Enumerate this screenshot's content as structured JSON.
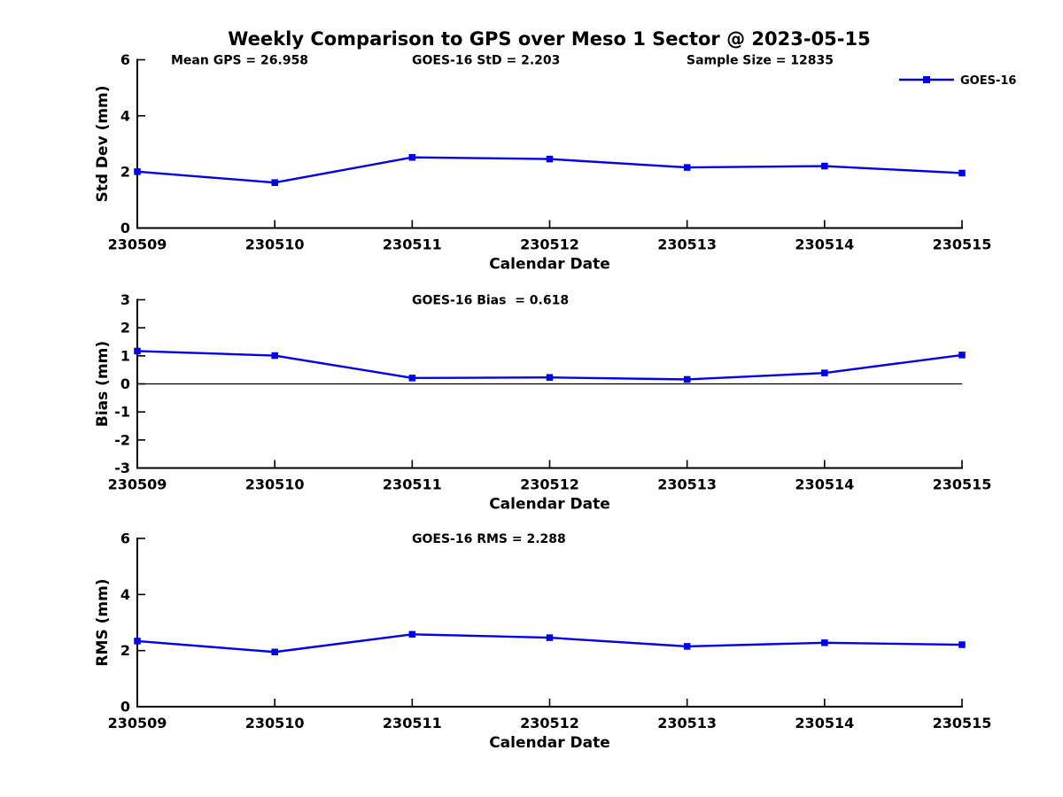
{
  "figure": {
    "title": "Weekly Comparison to GPS over Meso 1 Sector @ 2023-05-15",
    "background": "#ffffff",
    "text_color": "#000000"
  },
  "legend": {
    "label": "GOES-16",
    "color": "#0000ee",
    "marker": "filled-square",
    "position": "top-right",
    "frame": false
  },
  "chart_data": [
    {
      "type": "line",
      "name": "std-dev",
      "categories": [
        "230509",
        "230510",
        "230511",
        "230512",
        "230513",
        "230514",
        "230515"
      ],
      "series": [
        {
          "name": "GOES-16",
          "color": "#0000ee",
          "marker": "square",
          "values": [
            2.01,
            1.62,
            2.52,
            2.46,
            2.16,
            2.21,
            1.96
          ]
        }
      ],
      "xlabel": "Calendar Date",
      "ylabel": "Std Dev (mm)",
      "ylim": [
        0,
        6
      ],
      "yticks": [
        0,
        2,
        4,
        6
      ],
      "grid": false,
      "zero_line": false,
      "annotations": [
        "Mean GPS = 26.958",
        "GOES-16 StD = 2.203",
        "Sample Size = 12835"
      ]
    },
    {
      "type": "line",
      "name": "bias",
      "categories": [
        "230509",
        "230510",
        "230511",
        "230512",
        "230513",
        "230514",
        "230515"
      ],
      "series": [
        {
          "name": "GOES-16",
          "color": "#0000ee",
          "marker": "square",
          "values": [
            1.17,
            1.01,
            0.21,
            0.23,
            0.16,
            0.39,
            1.03
          ]
        }
      ],
      "xlabel": "Calendar Date",
      "ylabel": "Bias (mm)",
      "ylim": [
        -3,
        3
      ],
      "yticks": [
        -3,
        -2,
        -1,
        0,
        1,
        2,
        3
      ],
      "grid": false,
      "zero_line": true,
      "annotations": [
        "GOES-16 Bias  = 0.618"
      ]
    },
    {
      "type": "line",
      "name": "rms",
      "categories": [
        "230509",
        "230510",
        "230511",
        "230512",
        "230513",
        "230514",
        "230515"
      ],
      "series": [
        {
          "name": "GOES-16",
          "color": "#0000ee",
          "marker": "square",
          "values": [
            2.34,
            1.95,
            2.58,
            2.46,
            2.15,
            2.28,
            2.21
          ]
        }
      ],
      "xlabel": "Calendar Date",
      "ylabel": "RMS (mm)",
      "ylim": [
        0,
        6
      ],
      "yticks": [
        0,
        2,
        4,
        6
      ],
      "grid": false,
      "zero_line": false,
      "annotations": [
        "GOES-16 RMS = 2.288"
      ]
    }
  ]
}
